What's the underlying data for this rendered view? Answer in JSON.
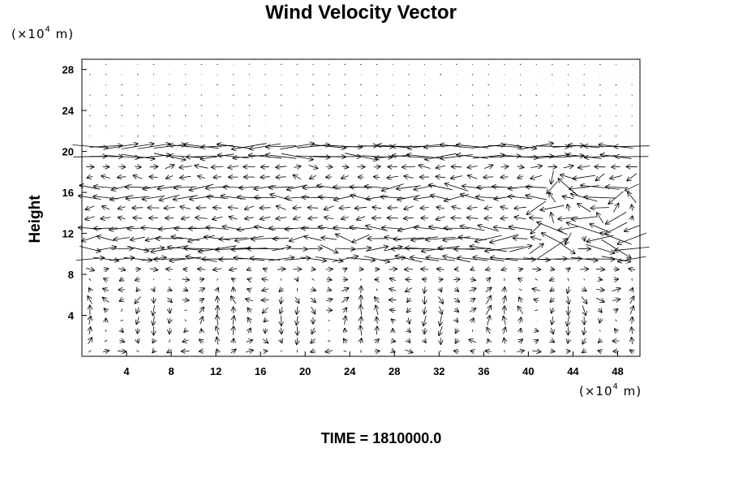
{
  "chart_data": {
    "type": "vector-field",
    "title": "Wind Velocity Vector",
    "ylabel": "Height",
    "xlabel": "",
    "x_unit": {
      "prefix": "(×10",
      "exp": "4",
      "suffix": " m)"
    },
    "y_unit": {
      "prefix": "(×10",
      "exp": "4",
      "suffix": " m)"
    },
    "xlim": [
      0,
      50
    ],
    "ylim": [
      0,
      29
    ],
    "xticks": [
      4,
      8,
      12,
      16,
      20,
      24,
      28,
      32,
      36,
      40,
      44,
      48
    ],
    "yticks": [
      4,
      8,
      12,
      16,
      20,
      24,
      28
    ],
    "grid": false,
    "field": {
      "nx": 35,
      "ny": 29,
      "dx_data": 1.43,
      "dy_data": 1.0,
      "calm_above": 21,
      "jets": [
        {
          "y": 20,
          "direction": "mixed"
        },
        {
          "y": 16,
          "direction": "westward"
        },
        {
          "y": 12,
          "direction": "westward"
        },
        {
          "y": 10,
          "direction": "mixed"
        }
      ]
    }
  },
  "caption": "TIME = 1810000.0"
}
